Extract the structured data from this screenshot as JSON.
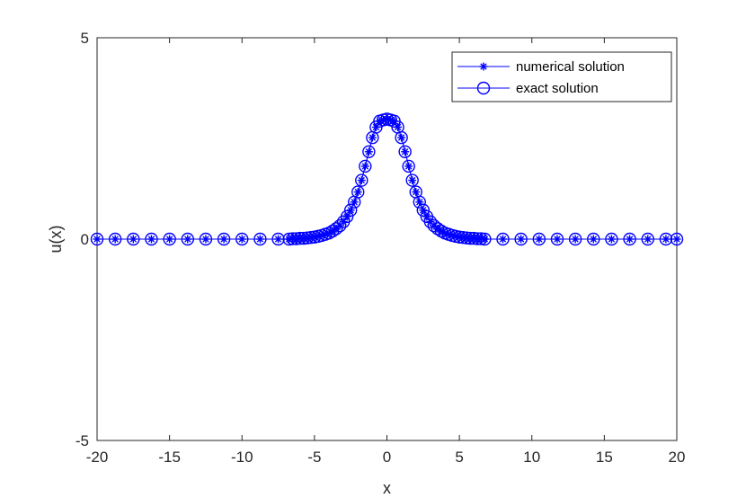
{
  "chart_data": {
    "type": "line",
    "title": "",
    "xlabel": "x",
    "ylabel": "u(x)",
    "xlim": [
      -20,
      20
    ],
    "ylim": [
      -5,
      5
    ],
    "xticks": [
      -20,
      -15,
      -10,
      -5,
      0,
      5,
      10,
      15,
      20
    ],
    "yticks": [
      -5,
      0,
      5
    ],
    "xtick_labels": [
      "-20",
      "-15",
      "-10",
      "-5",
      "0",
      "5",
      "10",
      "15",
      "20"
    ],
    "ytick_labels": [
      "-5",
      "0",
      "5"
    ],
    "grid": false,
    "legend_position": "top-right",
    "color": "#0000ff",
    "x": [
      -20,
      -18.75,
      -17.5,
      -16.25,
      -15,
      -13.75,
      -12.5,
      -11.25,
      -10,
      -8.75,
      -7.5,
      -6.75,
      -6.5,
      -6.25,
      -6,
      -5.75,
      -5.5,
      -5.25,
      -5,
      -4.75,
      -4.5,
      -4.25,
      -4,
      -3.75,
      -3.5,
      -3.25,
      -3,
      -2.75,
      -2.5,
      -2.25,
      -2,
      -1.75,
      -1.5,
      -1.25,
      -1,
      -0.75,
      -0.5,
      -0.25,
      0,
      0.25,
      0.5,
      0.75,
      1,
      1.25,
      1.5,
      1.75,
      2,
      2.25,
      2.5,
      2.75,
      3,
      3.25,
      3.5,
      3.75,
      4,
      4.25,
      4.5,
      4.75,
      5,
      5.25,
      5.5,
      5.75,
      6,
      6.25,
      6.5,
      6.75,
      8,
      9.25,
      10.5,
      11.75,
      13,
      14.25,
      15.5,
      16.75,
      18,
      19.25,
      20
    ],
    "series": [
      {
        "name": "numerical solution",
        "marker": "asterisk",
        "values": [
          0,
          0,
          0,
          0,
          0,
          0,
          0,
          0,
          0,
          0,
          0,
          0,
          0.01,
          0.01,
          0.02,
          0.02,
          0.03,
          0.04,
          0.05,
          0.07,
          0.09,
          0.12,
          0.15,
          0.2,
          0.26,
          0.33,
          0.43,
          0.56,
          0.72,
          0.92,
          1.17,
          1.46,
          1.81,
          2.17,
          2.52,
          2.78,
          2.93,
          2.96,
          2.98,
          2.96,
          2.93,
          2.78,
          2.52,
          2.17,
          1.81,
          1.46,
          1.17,
          0.92,
          0.72,
          0.56,
          0.43,
          0.33,
          0.26,
          0.2,
          0.15,
          0.12,
          0.09,
          0.07,
          0.05,
          0.04,
          0.03,
          0.02,
          0.02,
          0.01,
          0.01,
          0,
          0,
          0,
          0,
          0,
          0,
          0,
          0,
          0,
          0,
          0,
          0
        ]
      },
      {
        "name": "exact solution",
        "marker": "circle",
        "values": [
          0,
          0,
          0,
          0,
          0,
          0,
          0,
          0,
          0,
          0,
          0,
          0,
          0.01,
          0.01,
          0.02,
          0.02,
          0.03,
          0.04,
          0.05,
          0.07,
          0.09,
          0.12,
          0.15,
          0.2,
          0.26,
          0.33,
          0.43,
          0.56,
          0.72,
          0.92,
          1.17,
          1.46,
          1.81,
          2.17,
          2.52,
          2.78,
          2.93,
          2.96,
          2.98,
          2.96,
          2.93,
          2.78,
          2.52,
          2.17,
          1.81,
          1.46,
          1.17,
          0.92,
          0.72,
          0.56,
          0.43,
          0.33,
          0.26,
          0.2,
          0.15,
          0.12,
          0.09,
          0.07,
          0.05,
          0.04,
          0.03,
          0.02,
          0.02,
          0.01,
          0.01,
          0,
          0,
          0,
          0,
          0,
          0,
          0,
          0,
          0,
          0,
          0,
          0
        ]
      }
    ]
  }
}
